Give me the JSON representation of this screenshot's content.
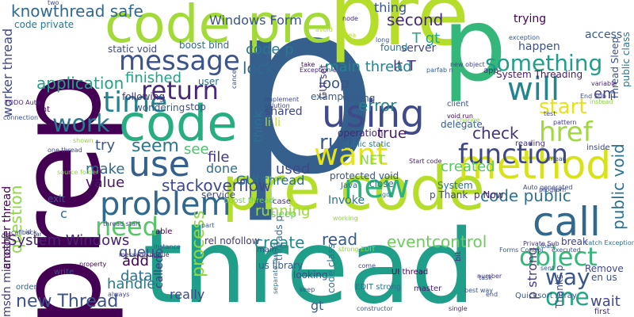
{
  "words": [
    {
      "text": "p",
      "color": "#355f8d"
    },
    {
      "text": "pre",
      "color": "#b5de2b"
    },
    {
      "text": "prep",
      "color": "#440154"
    },
    {
      "text": "thread",
      "color": "#1f9e89"
    },
    {
      "text": "pre code",
      "color": "#b5de2b"
    },
    {
      "text": "code pre",
      "color": "#a2da37"
    },
    {
      "text": "p",
      "color": "#35b779"
    },
    {
      "text": "code",
      "color": "#27ad81"
    },
    {
      "text": "using",
      "color": "#3e4a89"
    },
    {
      "text": "call",
      "color": "#31688e"
    },
    {
      "text": "method",
      "color": "#d8e219"
    },
    {
      "text": "message",
      "color": "#3b528b"
    },
    {
      "text": "time",
      "color": "#26828e"
    },
    {
      "text": "problem",
      "color": "#31688e"
    },
    {
      "text": "use",
      "color": "#355f8d"
    },
    {
      "text": "work",
      "color": "#2a788e"
    },
    {
      "text": "return",
      "color": "#482878"
    },
    {
      "text": "will",
      "color": "#25858e"
    },
    {
      "text": "new",
      "color": "#2db27d"
    },
    {
      "text": "want",
      "color": "#e5e419"
    },
    {
      "text": "function",
      "color": "#3e4989"
    },
    {
      "text": "href",
      "color": "#9fda3a"
    },
    {
      "text": "object",
      "color": "#35b779"
    },
    {
      "text": "way",
      "color": "#39568c"
    },
    {
      "text": "one",
      "color": "#22a884"
    },
    {
      "text": "new Thread",
      "color": "#3b528b"
    },
    {
      "text": "need",
      "color": "#56c667"
    },
    {
      "text": "start",
      "color": "#e5e419"
    },
    {
      "text": "something",
      "color": "#1f9e89"
    },
    {
      "text": "question",
      "color": "#8fd744"
    },
    {
      "text": "public void",
      "color": "#2c728e"
    },
    {
      "text": "seem",
      "color": "#2a768e"
    },
    {
      "text": "run",
      "color": "#375b8d"
    },
    {
      "text": "code public",
      "color": "#2c728e"
    },
    {
      "text": "application",
      "color": "#20a386"
    },
    {
      "text": "System Windows",
      "color": "#482475"
    },
    {
      "text": "knowthread safe",
      "color": "#31688e"
    },
    {
      "text": "Windows Form",
      "color": "#3b528b"
    },
    {
      "text": "wait",
      "color": "#404688"
    },
    {
      "text": "eventcontrol",
      "color": "#6ccd5a"
    },
    {
      "text": "stackoverflow",
      "color": "#3e4a89"
    },
    {
      "text": "create",
      "color": "#23898e"
    },
    {
      "text": "running",
      "color": "#9bd93c"
    },
    {
      "text": "read",
      "color": "#38598c"
    },
    {
      "text": "process",
      "color": "#90d743"
    },
    {
      "text": "make",
      "color": "#31688e"
    },
    {
      "text": "value",
      "color": "#481668"
    },
    {
      "text": "error",
      "color": "#26828e"
    },
    {
      "text": "loop",
      "color": "#3a538b"
    },
    {
      "text": "lock",
      "color": "#31688e"
    },
    {
      "text": "second",
      "color": "#482979"
    },
    {
      "text": "code p",
      "color": "#2a788e"
    },
    {
      "text": "lt T",
      "color": "#46327e"
    },
    {
      "text": "main thread",
      "color": "#25848e"
    },
    {
      "text": "T gt",
      "color": "#22a785"
    },
    {
      "text": "thing",
      "color": "#39558c"
    },
    {
      "text": "finished",
      "color": "#20a386"
    },
    {
      "text": "check",
      "color": "#46337f"
    },
    {
      "text": "true",
      "color": "#481a6c"
    },
    {
      "text": "file",
      "color": "#453882"
    },
    {
      "text": "done",
      "color": "#2e6e8e"
    },
    {
      "text": "data",
      "color": "#2c728e"
    },
    {
      "text": "queue",
      "color": "#3b528b"
    },
    {
      "text": "handle",
      "color": "#2a788e"
    },
    {
      "text": "add",
      "color": "#440154"
    },
    {
      "text": "created",
      "color": "#56c667"
    },
    {
      "text": "used",
      "color": "#3e4a89"
    },
    {
      "text": "GUI thread",
      "color": "#2e6e8e"
    },
    {
      "text": "Invoke",
      "color": "#2c728e"
    },
    {
      "text": "p strong",
      "color": "#453781"
    },
    {
      "text": "li li",
      "color": "#b5de2b"
    },
    {
      "text": "shared",
      "color": "#3f4788"
    },
    {
      "text": "worker thread",
      "color": "#3f4788"
    },
    {
      "text": "msdn microsoft",
      "color": "#453882"
    },
    {
      "text": "another thread",
      "color": "#440154"
    },
    {
      "text": "try",
      "color": "#39568c"
    },
    {
      "text": "see",
      "color": "#4ac16d"
    },
    {
      "text": "think",
      "color": "#2c728e"
    },
    {
      "text": "em",
      "color": "#414487"
    },
    {
      "text": "gt",
      "color": "#355f8d"
    },
    {
      "text": "really",
      "color": "#3e4989"
    },
    {
      "text": "called",
      "color": "#443a83"
    },
    {
      "text": "NET",
      "color": "#8bd646"
    },
    {
      "text": "c",
      "color": "#31688e"
    },
    {
      "text": "System Threading",
      "color": "#481a6c"
    },
    {
      "text": "Thread Sleep",
      "color": "#3b528b"
    },
    {
      "text": "public class",
      "color": "#2a768e"
    },
    {
      "text": "trying",
      "color": "#440154"
    },
    {
      "text": "happen",
      "color": "#3b528b"
    },
    {
      "text": "access",
      "color": "#38598c"
    },
    {
      "text": "server",
      "color": "#404688"
    },
    {
      "text": "found",
      "color": "#2a768e"
    },
    {
      "text": "GUI set",
      "color": "#453882"
    },
    {
      "text": "user",
      "color": "#2c728e"
    },
    {
      "text": "boost bind",
      "color": "#31688e"
    },
    {
      "text": "static void",
      "color": "#3e4a89"
    },
    {
      "text": "code private",
      "color": "#2a768e"
    },
    {
      "text": "following",
      "color": "#46337f"
    },
    {
      "text": "wondering",
      "color": "#38588c"
    },
    {
      "text": "stop",
      "color": "#3e4989"
    },
    {
      "text": "int",
      "color": "#440154"
    },
    {
      "text": "example",
      "color": "#355f8d"
    },
    {
      "text": "writing",
      "color": "#38598c"
    },
    {
      "text": "operation",
      "color": "#482475"
    },
    {
      "text": "public static",
      "color": "#2c728e"
    },
    {
      "text": "protected void",
      "color": "#3b528b"
    },
    {
      "text": "System",
      "color": "#2c728e"
    },
    {
      "text": "close",
      "color": "#2a788e"
    },
    {
      "text": "Java",
      "color": "#31688e"
    },
    {
      "text": "p Thank",
      "color": "#404688"
    },
    {
      "text": "p Now",
      "color": "#481f70"
    },
    {
      "text": "delegate",
      "color": "#355f8d"
    },
    {
      "text": "client",
      "color": "#3b528b"
    },
    {
      "text": "reading",
      "color": "#46337f"
    },
    {
      "text": "inside",
      "color": "#3f4788"
    },
    {
      "text": "break",
      "color": "#414487"
    },
    {
      "text": "Remove",
      "color": "#3e4a89"
    },
    {
      "text": "en us",
      "color": "#3b528b"
    },
    {
      "text": "Quicksort Array",
      "color": "#38598c"
    },
    {
      "text": "UI thread",
      "color": "#440154"
    },
    {
      "text": "EDIT strong",
      "color": "#2c728e"
    },
    {
      "text": "master",
      "color": "#482475"
    },
    {
      "text": "sleep",
      "color": "#6ece58"
    },
    {
      "text": "rel nofollow",
      "color": "#453882"
    },
    {
      "text": "service",
      "color": "#3e4989"
    },
    {
      "text": "exit",
      "color": "#3b528b"
    },
    {
      "text": "able",
      "color": "#440154"
    },
    {
      "text": "boost thread",
      "color": "#6ece58"
    },
    {
      "text": "case",
      "color": "#46337f"
    },
    {
      "text": "us library",
      "color": "#38598c"
    },
    {
      "text": "looking",
      "color": "#3e4989"
    },
    {
      "text": "code class",
      "color": "#2a768e"
    },
    {
      "text": "threads p",
      "color": "#2c728e"
    },
    {
      "text": "bit",
      "color": "#46337f"
    },
    {
      "text": "first",
      "color": "#482878"
    },
    {
      "text": "Thanks p",
      "color": "#3e4989"
    },
    {
      "text": "write",
      "color": "#3b528b"
    },
    {
      "text": "main",
      "color": "#3e4989"
    },
    {
      "text": "order",
      "color": "#31688e"
    },
    {
      "text": "Start code",
      "color": "#481f70"
    },
    {
      "text": "source folder",
      "color": "#8fd744"
    },
    {
      "text": "TODO Auto",
      "color": "#482878"
    },
    {
      "text": "Auto generated",
      "color": "#3e4989"
    },
    {
      "text": "message queue",
      "color": "#482878"
    },
    {
      "text": "End Sub",
      "color": "#3e4a89"
    },
    {
      "text": "Private Sub",
      "color": "#46337f"
    },
    {
      "text": "catch Exception",
      "color": "#2c728e"
    },
    {
      "text": "Forms Control",
      "color": "#38598c"
    },
    {
      "text": "executed",
      "color": "#3b528b"
    },
    {
      "text": "connection",
      "color": "#3b528b"
    },
    {
      "text": "two",
      "color": "#3e4989"
    },
    {
      "text": "idea",
      "color": "#b5de2b"
    },
    {
      "text": "long",
      "color": "#3b528b"
    },
    {
      "text": "node",
      "color": "#482475"
    },
    {
      "text": "avoid",
      "color": "#b5de2b"
    },
    {
      "text": "app",
      "color": "#46337f"
    },
    {
      "text": "new object",
      "color": "#3e4989"
    },
    {
      "text": "exception",
      "color": "#38598c"
    },
    {
      "text": "variable",
      "color": "#482475"
    },
    {
      "text": "pattern",
      "color": "#453882"
    },
    {
      "text": "test",
      "color": "#3e4989"
    },
    {
      "text": "mean",
      "color": "#3e4a89"
    },
    {
      "text": "take",
      "color": "#440154"
    },
    {
      "text": "Exception e",
      "color": "#482475"
    },
    {
      "text": "parfab n",
      "color": "#355f8d"
    },
    {
      "text": "implement",
      "color": "#3e4989"
    },
    {
      "text": "solution",
      "color": "#3e4989"
    },
    {
      "text": "void run",
      "color": "#440154"
    },
    {
      "text": "change",
      "color": "#8fd744"
    },
    {
      "text": "instead",
      "color": "#8fd744"
    },
    {
      "text": "got",
      "color": "#2a788e"
    },
    {
      "text": "keep",
      "color": "#3b528b"
    },
    {
      "text": "come",
      "color": "#3e4989"
    },
    {
      "text": "single",
      "color": "#481f70"
    },
    {
      "text": "end",
      "color": "#3e4989"
    },
    {
      "text": "load",
      "color": "#38598c"
    },
    {
      "text": "sent",
      "color": "#38598c"
    },
    {
      "text": "best way",
      "color": "#3b528b"
    },
    {
      "text": "task",
      "color": "#3b528b"
    },
    {
      "text": "number",
      "color": "#46337f"
    },
    {
      "text": "program",
      "color": "#3e4989"
    },
    {
      "text": "one thread",
      "color": "#3e4989"
    },
    {
      "text": "thread start",
      "color": "#3e4989"
    },
    {
      "text": "shown",
      "color": "#8fd744"
    },
    {
      "text": "callback",
      "color": "#3e4989"
    },
    {
      "text": "property",
      "color": "#440154"
    },
    {
      "text": "always",
      "color": "#3e4989"
    },
    {
      "text": "instance",
      "color": "#3b528b"
    },
    {
      "text": "separate thread",
      "color": "#2c728e"
    },
    {
      "text": "cancel",
      "color": "#3e4989"
    },
    {
      "text": "working",
      "color": "#8fd744"
    },
    {
      "text": "part",
      "color": "#38598c"
    },
    {
      "text": "far",
      "color": "#3e4989"
    },
    {
      "text": "id",
      "color": "#3e4989"
    },
    {
      "text": "strong EDIT",
      "color": "#8fd744"
    },
    {
      "text": "constructor",
      "color": "#38598c"
    }
  ]
}
